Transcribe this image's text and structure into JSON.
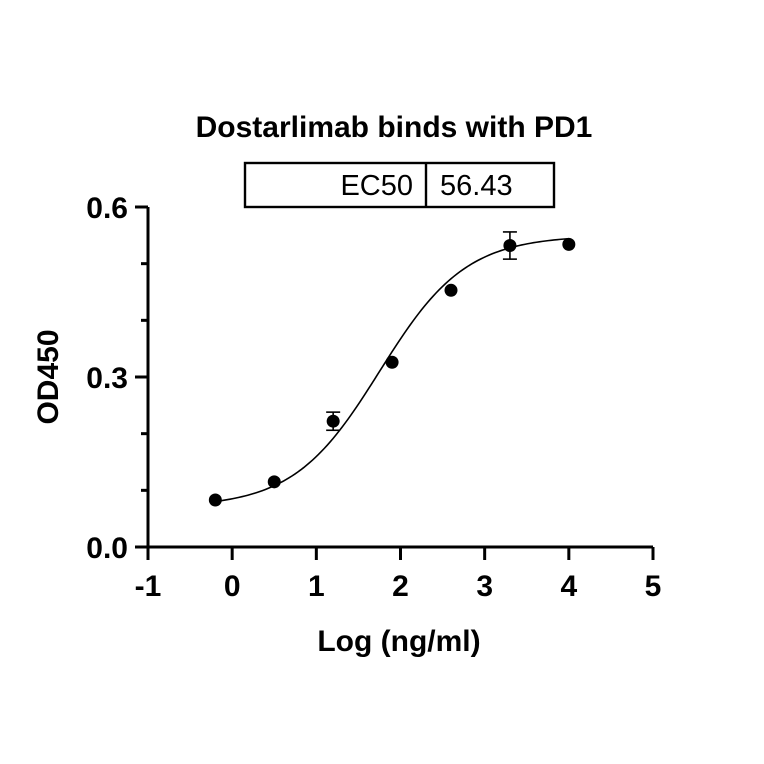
{
  "chart_data": {
    "type": "scatter",
    "title": "Dostarlimab binds with PD1",
    "xlabel": "Log (ng/ml)",
    "ylabel": "OD450",
    "xlim": [
      -1,
      5
    ],
    "ylim": [
      0,
      0.6
    ],
    "x_ticks": [
      "-1",
      "0",
      "1",
      "2",
      "3",
      "4",
      "5"
    ],
    "y_ticks": [
      "0.0",
      "0.3",
      "0.6"
    ],
    "ec50_table": {
      "label": "EC50",
      "value": "56.43"
    },
    "points": [
      {
        "x": -0.2,
        "y": 0.083,
        "err": 0
      },
      {
        "x": 0.5,
        "y": 0.115,
        "err": 0
      },
      {
        "x": 1.2,
        "y": 0.222,
        "err": 0.016
      },
      {
        "x": 1.9,
        "y": 0.326,
        "err": 0
      },
      {
        "x": 2.6,
        "y": 0.453,
        "err": 0
      },
      {
        "x": 3.3,
        "y": 0.532,
        "err": 0.024
      },
      {
        "x": 4.0,
        "y": 0.534,
        "err": 0
      }
    ],
    "fit": {
      "model": "4PL",
      "bottom": 0.07,
      "top": 0.55,
      "logEC50": 1.7515,
      "hill": 0.85
    },
    "grid": false,
    "legend": "none"
  }
}
